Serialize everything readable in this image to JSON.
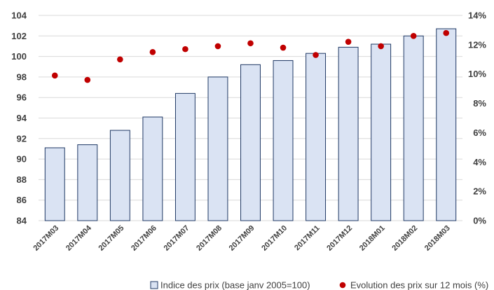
{
  "chart_data": {
    "type": "bar",
    "categories": [
      "2017M03",
      "2017M04",
      "2017M05",
      "2017M06",
      "2017M07",
      "2017M08",
      "2017M09",
      "2017M10",
      "2017M11",
      "2017M12",
      "2018M01",
      "2018M02",
      "2018M03"
    ],
    "series": [
      {
        "name": "Indice des prix (base janv 2005=100)",
        "type": "bar",
        "axis": "left",
        "values": [
          91.1,
          91.4,
          92.8,
          94.1,
          96.4,
          98.0,
          99.2,
          99.6,
          100.3,
          100.9,
          101.2,
          102.0,
          102.7
        ]
      },
      {
        "name": "Evolution des prix sur 12 mois (%)",
        "type": "scatter",
        "axis": "right",
        "values": [
          9.9,
          9.6,
          11.0,
          11.5,
          11.7,
          11.9,
          12.1,
          11.8,
          11.3,
          12.2,
          11.9,
          12.6,
          12.8
        ]
      }
    ],
    "y_left": {
      "min": 84,
      "max": 104,
      "ticks": [
        "84",
        "86",
        "88",
        "90",
        "92",
        "94",
        "96",
        "98",
        "100",
        "102",
        "104"
      ]
    },
    "y_right": {
      "min": 0,
      "max": 14,
      "ticks": [
        "0%",
        "2%",
        "4%",
        "6%",
        "8%",
        "10%",
        "12%",
        "14%"
      ]
    },
    "grid": "horizontal",
    "legend_position": "bottom",
    "colors": {
      "bar_fill": "#dae3f3",
      "bar_stroke": "#1f3864",
      "dot": "#c00000",
      "grid": "#d9d9d9",
      "text": "#404040"
    }
  }
}
